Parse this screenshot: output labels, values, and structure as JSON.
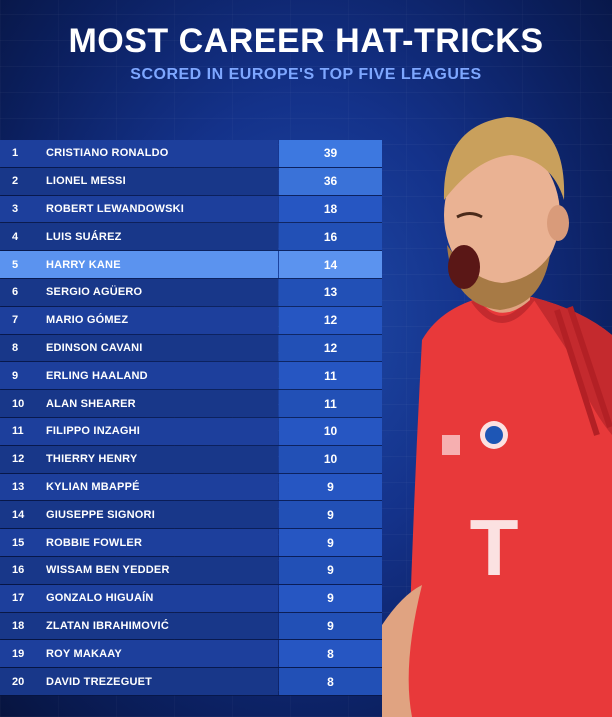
{
  "header": {
    "title": "MOST CAREER HAT-TRICKS",
    "subtitle": "SCORED IN EUROPE'S TOP FIVE LEAGUES"
  },
  "colors": {
    "background": "#14328a",
    "name_cell": "#1d3f9c",
    "value_cell": "#2656c2",
    "highlight": "#5b93ef",
    "subtitle": "#7ea7ff",
    "kit_red": "#e8393a"
  },
  "highlighted_rank": "5",
  "rows": [
    {
      "rank": "1",
      "name": "CRISTIANO RONALDO",
      "value": "39"
    },
    {
      "rank": "2",
      "name": "LIONEL MESSI",
      "value": "36"
    },
    {
      "rank": "3",
      "name": "ROBERT LEWANDOWSKI",
      "value": "18"
    },
    {
      "rank": "4",
      "name": "LUIS SUÁREZ",
      "value": "16"
    },
    {
      "rank": "5",
      "name": "HARRY KANE",
      "value": "14"
    },
    {
      "rank": "6",
      "name": "SERGIO AGÜERO",
      "value": "13"
    },
    {
      "rank": "7",
      "name": "MARIO GÓMEZ",
      "value": "12"
    },
    {
      "rank": "8",
      "name": "EDINSON CAVANI",
      "value": "12"
    },
    {
      "rank": "9",
      "name": "ERLING HAALAND",
      "value": "11"
    },
    {
      "rank": "10",
      "name": "ALAN SHEARER",
      "value": "11"
    },
    {
      "rank": "11",
      "name": "FILIPPO INZAGHI",
      "value": "10"
    },
    {
      "rank": "12",
      "name": "THIERRY HENRY",
      "value": "10"
    },
    {
      "rank": "13",
      "name": "KYLIAN MBAPPÉ",
      "value": "9"
    },
    {
      "rank": "14",
      "name": "GIUSEPPE SIGNORI",
      "value": "9"
    },
    {
      "rank": "15",
      "name": "ROBBIE FOWLER",
      "value": "9"
    },
    {
      "rank": "16",
      "name": "WISSAM BEN YEDDER",
      "value": "9"
    },
    {
      "rank": "17",
      "name": "GONZALO HIGUAÍN",
      "value": "9"
    },
    {
      "rank": "18",
      "name": "ZLATAN IBRAHIMOVIĆ",
      "value": "9"
    },
    {
      "rank": "19",
      "name": "ROY MAKAAY",
      "value": "8"
    },
    {
      "rank": "20",
      "name": "DAVID TREZEGUET",
      "value": "8"
    }
  ]
}
